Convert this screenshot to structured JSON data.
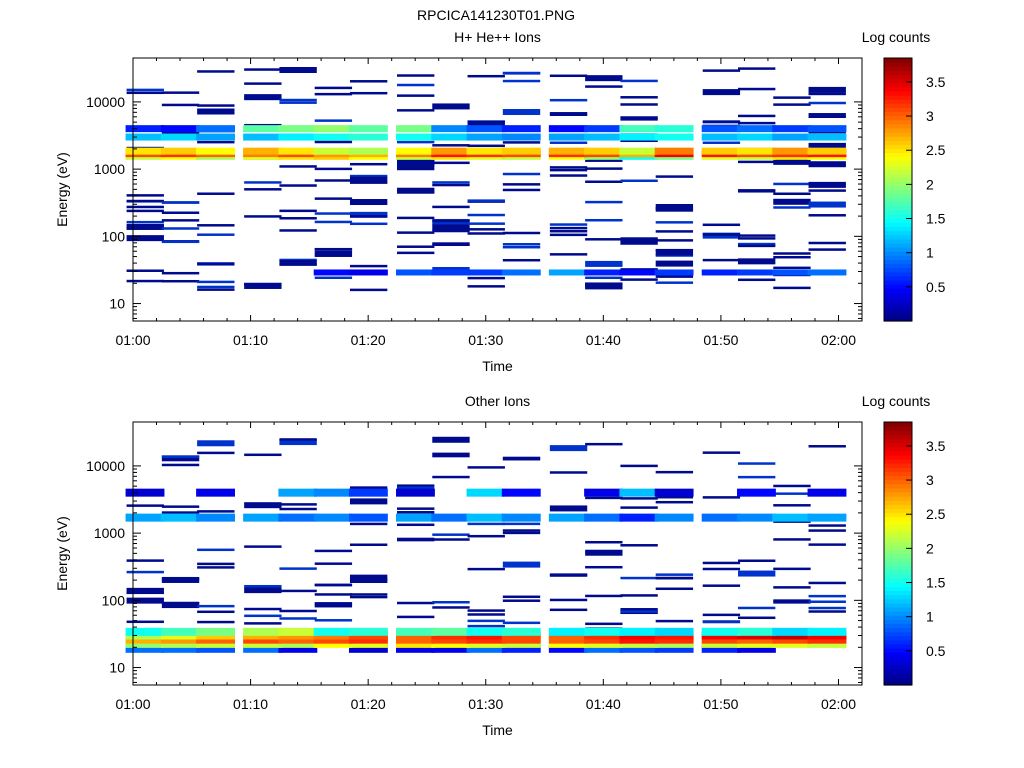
{
  "figure_title": "RPCICA141230T01.PNG",
  "chart_data": [
    {
      "type": "heatmap",
      "title": "H+ He++ Ions",
      "xlabel": "Time",
      "ylabel": "Energy (eV)",
      "y_scale": "log",
      "ylim": [
        5.5,
        45000
      ],
      "xlim": [
        "01:00",
        "02:02"
      ],
      "x_ticks": [
        "01:00",
        "01:10",
        "01:20",
        "01:30",
        "01:40",
        "01:50",
        "02:00"
      ],
      "y_ticks": [
        "10",
        "100",
        "1000",
        "10000"
      ],
      "colorbar": {
        "label": "Log counts",
        "range": [
          0,
          3.85
        ],
        "ticks": [
          "0.5",
          "1",
          "1.5",
          "2",
          "2.5",
          "3",
          "3.5"
        ],
        "colormap": "jet"
      },
      "time_bins": [
        "01:01",
        "01:04",
        "01:07",
        "01:11",
        "01:14",
        "01:17",
        "01:20",
        "01:24",
        "01:27",
        "01:30",
        "01:33",
        "01:37",
        "01:40",
        "01:43",
        "01:46",
        "01:50",
        "01:53",
        "01:56",
        "01:59"
      ],
      "band_energies": [
        3000,
        4000,
        1550,
        1700,
        1850
      ],
      "band_levels": [
        [
          1.2,
          1.3,
          1.1,
          1.2,
          1.4,
          1.5,
          1.6,
          1.5,
          1.3,
          1.1,
          1.0,
          1.1,
          1.2,
          1.4,
          1.5,
          1.2,
          1.3,
          1.1,
          1.2
        ],
        [
          0.6,
          0.5,
          0.9,
          1.8,
          1.9,
          2.0,
          1.8,
          1.9,
          1.0,
          0.8,
          0.6,
          0.5,
          0.7,
          1.7,
          1.6,
          0.8,
          0.9,
          0.7,
          0.8
        ],
        [
          2.2,
          2.4,
          2.1,
          2.3,
          2.5,
          2.6,
          2.4,
          2.2,
          2.5,
          2.3,
          2.2,
          2.4,
          2.0,
          1.5,
          1.9,
          2.3,
          2.2,
          2.5,
          2.4
        ],
        [
          3.1,
          3.2,
          3.0,
          2.9,
          3.1,
          2.8,
          2.7,
          2.9,
          3.3,
          3.2,
          3.1,
          3.2,
          3.1,
          2.7,
          3.4,
          3.3,
          3.1,
          3.2,
          3.3
        ],
        [
          2.5,
          2.6,
          2.4,
          2.7,
          2.5,
          2.2,
          2.1,
          2.4,
          2.8,
          2.5,
          2.6,
          2.7,
          2.6,
          2.2,
          2.9,
          2.6,
          2.5,
          2.8,
          2.6
        ]
      ],
      "low_energy_channel": {
        "energy": 29,
        "levels": [
          0,
          0,
          0,
          0,
          0,
          0.5,
          0.4,
          0.8,
          0.7,
          0.7,
          0.9,
          1.1,
          0.6,
          0.5,
          0.7,
          0.6,
          0.7,
          0.8,
          0.9
        ]
      }
    },
    {
      "type": "heatmap",
      "title": "Other Ions",
      "xlabel": "Time",
      "ylabel": "Energy (eV)",
      "y_scale": "log",
      "ylim": [
        5.5,
        45000
      ],
      "xlim": [
        "01:00",
        "02:02"
      ],
      "x_ticks": [
        "01:00",
        "01:10",
        "01:20",
        "01:30",
        "01:40",
        "01:50",
        "02:00"
      ],
      "y_ticks": [
        "10",
        "100",
        "1000",
        "10000"
      ],
      "colorbar": {
        "label": "Log counts",
        "range": [
          0,
          3.85
        ],
        "ticks": [
          "0.5",
          "1",
          "1.5",
          "2",
          "2.5",
          "3",
          "3.5"
        ],
        "colormap": "jet"
      },
      "time_bins": [
        "01:01",
        "01:04",
        "01:07",
        "01:11",
        "01:14",
        "01:17",
        "01:20",
        "01:24",
        "01:27",
        "01:30",
        "01:33",
        "01:37",
        "01:40",
        "01:43",
        "01:46",
        "01:50",
        "01:53",
        "01:56",
        "01:59"
      ],
      "band_energies": [
        19,
        22.5,
        26,
        30,
        34,
        1700,
        4000
      ],
      "band_levels": [
        [
          0.9,
          0.9,
          0.8,
          0.9,
          0.4,
          0,
          0.3,
          0.4,
          0.4,
          0.9,
          0.6,
          0.5,
          0.9,
          0.8,
          0.7,
          0.6,
          0.4,
          0,
          0
        ],
        [
          2.0,
          2.1,
          2.2,
          2.2,
          2.1,
          2.4,
          2.3,
          2.5,
          2.4,
          2.3,
          2.2,
          2.4,
          2.3,
          2.2,
          2.1,
          2.2,
          2.3,
          2.3,
          2.2
        ],
        [
          2.7,
          2.8,
          3.0,
          3.1,
          3.0,
          3.1,
          3.2,
          3.0,
          3.1,
          3.2,
          3.1,
          3.0,
          3.1,
          3.3,
          3.2,
          3.1,
          3.0,
          3.1,
          3.2
        ],
        [
          2.1,
          2.3,
          2.6,
          2.7,
          2.8,
          2.9,
          3.1,
          3.0,
          3.2,
          3.3,
          3.1,
          3.0,
          3.2,
          3.4,
          3.3,
          3.4,
          3.5,
          3.6,
          3.4
        ],
        [
          1.5,
          1.7,
          1.9,
          2.1,
          2.2,
          1.5,
          1.6,
          1.7,
          1.8,
          1.5,
          1.6,
          1.4,
          1.5,
          1.4,
          1.3,
          1.5,
          1.6,
          1.3,
          1.4
        ],
        [
          1.1,
          1.2,
          1.0,
          1.1,
          0.9,
          1.0,
          0.8,
          1.1,
          0.9,
          1.2,
          1.0,
          1.1,
          0.9,
          0.6,
          1.0,
          0.9,
          1.0,
          1.2,
          1.1
        ],
        [
          0.3,
          0,
          0.4,
          0,
          1.1,
          1.0,
          0.7,
          0.3,
          0,
          1.3,
          0.5,
          0,
          0.4,
          1.2,
          0.3,
          0,
          0.5,
          0,
          0.4
        ]
      ]
    }
  ]
}
